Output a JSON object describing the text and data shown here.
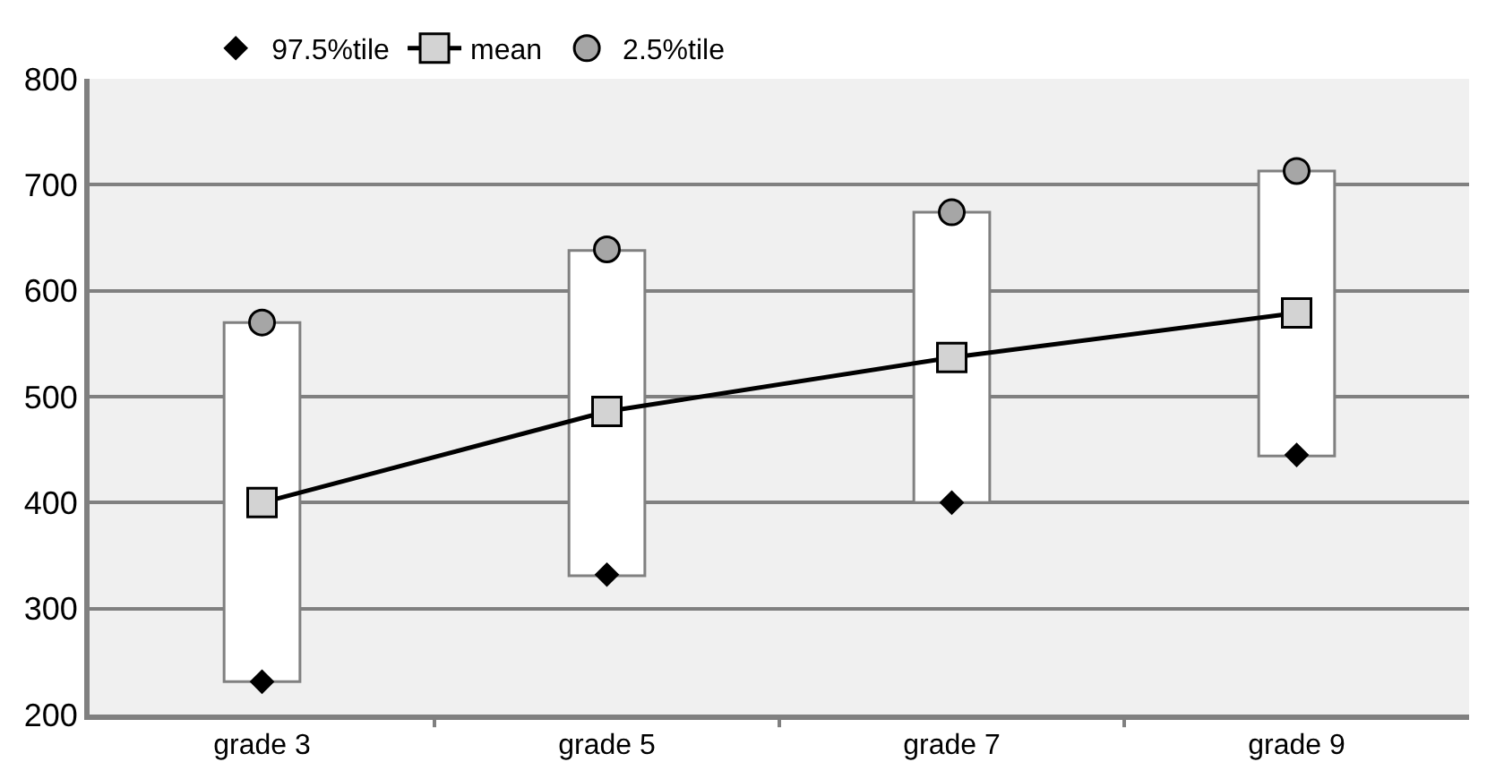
{
  "chart_data": {
    "type": "line",
    "categories": [
      "grade 3",
      "grade 5",
      "grade 7",
      "grade 9"
    ],
    "ylim": [
      200,
      800
    ],
    "yticks": [
      200,
      300,
      400,
      500,
      600,
      700,
      800
    ],
    "grid": "y",
    "legend": "top",
    "series": [
      {
        "type": "bar",
        "color": "#ffffff",
        "base": [
          231,
          331,
          400,
          444
        ],
        "values": [
          339,
          307,
          274,
          269
        ]
      },
      {
        "type": "scatter",
        "name": "97.5%tile",
        "color": "#000000",
        "marker": "diamond",
        "values": [
          231,
          332,
          400,
          445
        ]
      },
      {
        "name": "mean",
        "color": "#d3d3d3",
        "marker": "square",
        "line_style": "solid",
        "values": [
          400,
          486,
          537,
          579
        ]
      },
      {
        "type": "scatter",
        "name": "2.5%tile",
        "color": "#a6a6a6",
        "marker": "circle",
        "values": [
          570,
          639,
          674,
          713
        ]
      }
    ]
  }
}
